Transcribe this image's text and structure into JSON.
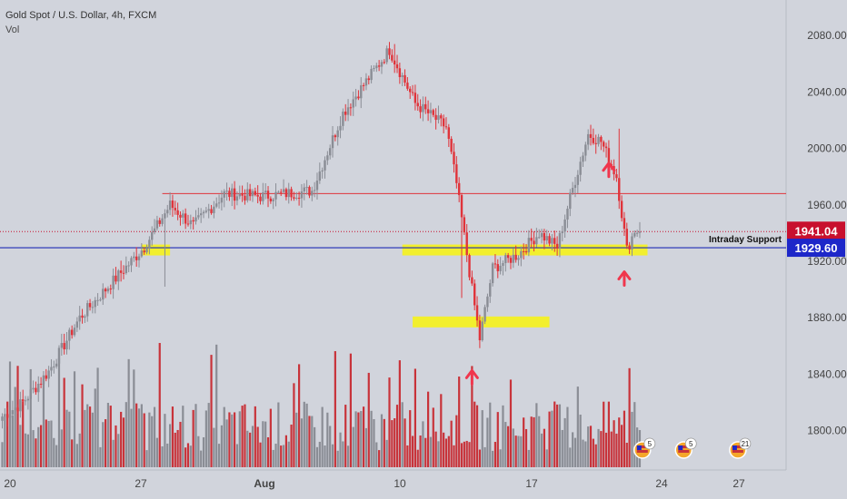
{
  "header": {
    "symbol_title": "Gold Spot / U.S. Dollar, 4h, FXCM",
    "volume_label": "Vol"
  },
  "colors": {
    "background": "#d1d4dc",
    "up_candle": "#8a8d95",
    "down_candle": "#e0333a",
    "volume_up": "#8a8d95",
    "volume_down": "#c8333a",
    "resistance_line": "#e0333a",
    "support_line": "#1e2bb5",
    "highlight": "#f4f11e",
    "price_tag_red": "#c8102e",
    "price_tag_blue": "#1d27c9",
    "arrow": "#f0364d"
  },
  "chart_data": {
    "type": "candlestick",
    "instrument": "Gold Spot / U.S. Dollar",
    "timeframe": "4h",
    "source": "FXCM",
    "y_axis": {
      "ticks": [
        2080,
        2040,
        2000,
        1960,
        1920,
        1880,
        1840,
        1800
      ],
      "labels": [
        "2080.00",
        "2040.00",
        "2000.00",
        "1960.00",
        "1920.00",
        "1880.00",
        "1840.00",
        "1800.00"
      ],
      "range": [
        1774,
        2102
      ]
    },
    "x_axis": {
      "labels": [
        "20",
        "27",
        "Aug",
        "10",
        "17",
        "24",
        "27"
      ],
      "bold": [
        "Aug"
      ]
    },
    "last_price": "1941.04",
    "support_price": "1929.60",
    "annotation_label": "Intraday Support",
    "resistance_level": 1968,
    "support_level": 1929.6,
    "last_level": 1941.04,
    "highlight_zones": [
      {
        "from_bar": 54,
        "to_bar": 65,
        "price": 1928
      },
      {
        "from_bar": 155,
        "to_bar": 250,
        "price": 1928
      },
      {
        "from_bar": 159,
        "to_bar": 212,
        "price": 1877
      }
    ],
    "up_arrows": [
      {
        "bar": 182,
        "price": 1840
      },
      {
        "bar": 241,
        "price": 1910
      },
      {
        "bar": 235,
        "price": 1987
      }
    ],
    "events": [
      {
        "bar": 248,
        "count": "5"
      },
      {
        "bar": 264,
        "count": "5"
      },
      {
        "bar": 285,
        "count": "21"
      }
    ],
    "segments": [
      [
        0,
        1810
      ],
      [
        8,
        1820
      ],
      [
        18,
        1842
      ],
      [
        30,
        1880
      ],
      [
        45,
        1910
      ],
      [
        55,
        1930
      ],
      [
        65,
        1960
      ],
      [
        74,
        1945
      ],
      [
        86,
        1968
      ],
      [
        100,
        1966
      ],
      [
        120,
        1970
      ],
      [
        132,
        2025
      ],
      [
        150,
        2070
      ],
      [
        160,
        2032
      ],
      [
        172,
        2015
      ],
      [
        176,
        1975
      ],
      [
        182,
        1900
      ],
      [
        185,
        1865
      ],
      [
        190,
        1915
      ],
      [
        200,
        1925
      ],
      [
        208,
        1940
      ],
      [
        215,
        1930
      ],
      [
        220,
        1965
      ],
      [
        227,
        2010
      ],
      [
        232,
        2005
      ],
      [
        238,
        1980
      ],
      [
        242,
        1928
      ],
      [
        245,
        1942
      ],
      [
        247,
        1941
      ]
    ]
  }
}
